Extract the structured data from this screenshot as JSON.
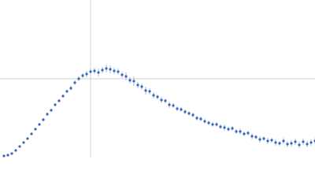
{
  "chart_data": {
    "type": "scatter",
    "color": "#3a66b8",
    "grid": true,
    "xlim": [
      0,
      400
    ],
    "ylim": [
      0,
      200
    ],
    "xticks": [
      115
    ],
    "yticks": [
      100
    ],
    "x": [
      5,
      10,
      15,
      20,
      25,
      30,
      35,
      40,
      45,
      50,
      55,
      60,
      65,
      70,
      75,
      80,
      85,
      90,
      95,
      100,
      105,
      110,
      115,
      120,
      125,
      130,
      135,
      140,
      145,
      150,
      155,
      160,
      165,
      170,
      175,
      180,
      185,
      190,
      195,
      200,
      205,
      210,
      215,
      220,
      225,
      230,
      235,
      240,
      245,
      250,
      255,
      260,
      265,
      270,
      275,
      280,
      285,
      290,
      295,
      300,
      305,
      310,
      315,
      320,
      325,
      330,
      335,
      340,
      345,
      350,
      355,
      360,
      365,
      370,
      375,
      380,
      385,
      390,
      395,
      400
    ],
    "values": [
      2,
      3,
      5,
      9,
      14,
      19,
      24,
      30,
      36,
      42,
      48,
      55,
      60,
      67,
      72,
      78,
      84,
      88,
      95,
      100,
      104,
      106,
      109,
      110,
      108,
      111,
      113,
      112,
      110,
      109,
      105,
      103,
      98,
      97,
      92,
      90,
      85,
      84,
      79,
      77,
      73,
      72,
      67,
      66,
      62,
      61,
      58,
      56,
      54,
      50,
      49,
      46,
      44,
      42,
      42,
      39,
      38,
      36,
      37,
      33,
      33,
      30,
      31,
      27,
      26,
      23,
      24,
      21,
      22,
      19,
      18,
      21,
      17,
      18,
      20,
      16,
      20,
      17,
      19,
      21
    ],
    "errors": [
      1,
      1,
      1,
      1,
      1,
      1,
      1,
      1,
      1,
      1,
      2,
      2,
      2,
      2,
      2,
      2,
      2,
      3,
      3,
      3,
      3,
      4,
      4,
      4,
      5,
      4,
      5,
      5,
      4,
      4,
      4,
      5,
      4,
      6,
      4,
      4,
      5,
      4,
      4,
      3,
      4,
      3,
      4,
      3,
      3,
      3,
      3,
      3,
      3,
      3,
      3,
      3,
      3,
      3,
      3,
      3,
      4,
      3,
      3,
      3,
      4,
      3,
      3,
      4,
      3,
      4,
      3,
      4,
      3,
      4,
      3,
      4,
      4,
      4,
      4,
      4,
      4,
      4,
      4,
      4
    ]
  }
}
